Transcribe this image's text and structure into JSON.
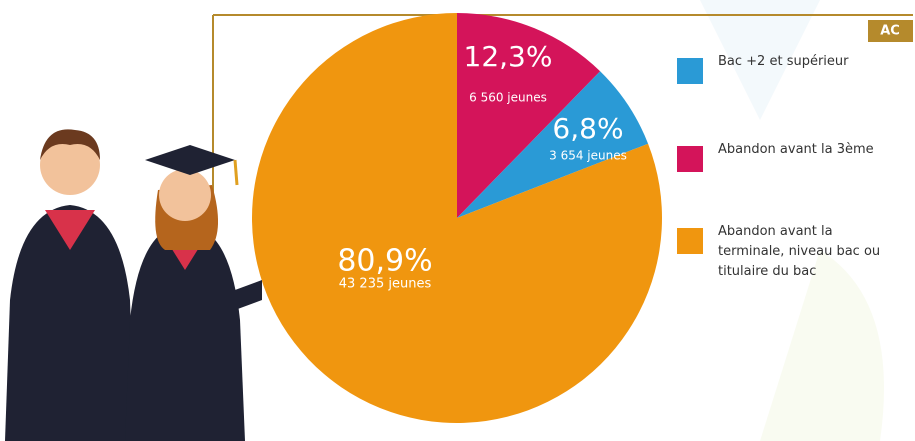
{
  "chart_data": {
    "type": "pie",
    "badge": "AC",
    "categories": [
      "Abandon avant la 3ème",
      "Bac +2 et supérieur",
      "Abandon avant la terminale, niveau bac ou titulaire du bac"
    ],
    "values": [
      12.3,
      6.8,
      80.9
    ],
    "value_labels": [
      "12,3%",
      "6,8%",
      "80,9%"
    ],
    "counts": [
      6560,
      3654,
      43235
    ],
    "count_labels": [
      "6 560 jeunes",
      "3 654 jeunes",
      "43 235 jeunes"
    ],
    "colors": [
      "#d4145a",
      "#2a9ad6",
      "#f0960f"
    ]
  }
}
